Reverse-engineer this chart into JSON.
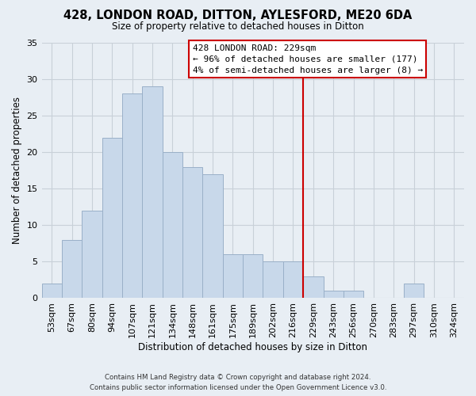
{
  "title": "428, LONDON ROAD, DITTON, AYLESFORD, ME20 6DA",
  "subtitle": "Size of property relative to detached houses in Ditton",
  "xlabel": "Distribution of detached houses by size in Ditton",
  "ylabel": "Number of detached properties",
  "bar_labels": [
    "53sqm",
    "67sqm",
    "80sqm",
    "94sqm",
    "107sqm",
    "121sqm",
    "134sqm",
    "148sqm",
    "161sqm",
    "175sqm",
    "189sqm",
    "202sqm",
    "216sqm",
    "229sqm",
    "243sqm",
    "256sqm",
    "270sqm",
    "283sqm",
    "297sqm",
    "310sqm",
    "324sqm"
  ],
  "bar_values": [
    2,
    8,
    12,
    22,
    28,
    29,
    20,
    18,
    17,
    6,
    6,
    5,
    5,
    3,
    1,
    1,
    0,
    0,
    2,
    0,
    0
  ],
  "bar_color": "#c8d8ea",
  "bar_edge_color": "#9ab0c8",
  "marker_line_x_label": "229sqm",
  "marker_line_color": "#cc0000",
  "annotation_title": "428 LONDON ROAD: 229sqm",
  "annotation_line1": "← 96% of detached houses are smaller (177)",
  "annotation_line2": "4% of semi-detached houses are larger (8) →",
  "annotation_box_color": "#ffffff",
  "annotation_box_edge": "#cc0000",
  "ylim": [
    0,
    35
  ],
  "yticks": [
    0,
    5,
    10,
    15,
    20,
    25,
    30,
    35
  ],
  "footer_line1": "Contains HM Land Registry data © Crown copyright and database right 2024.",
  "footer_line2": "Contains public sector information licensed under the Open Government Licence v3.0.",
  "bg_color": "#e8eef4",
  "plot_bg_color": "#e8eef4",
  "grid_color": "#c8d0d8"
}
